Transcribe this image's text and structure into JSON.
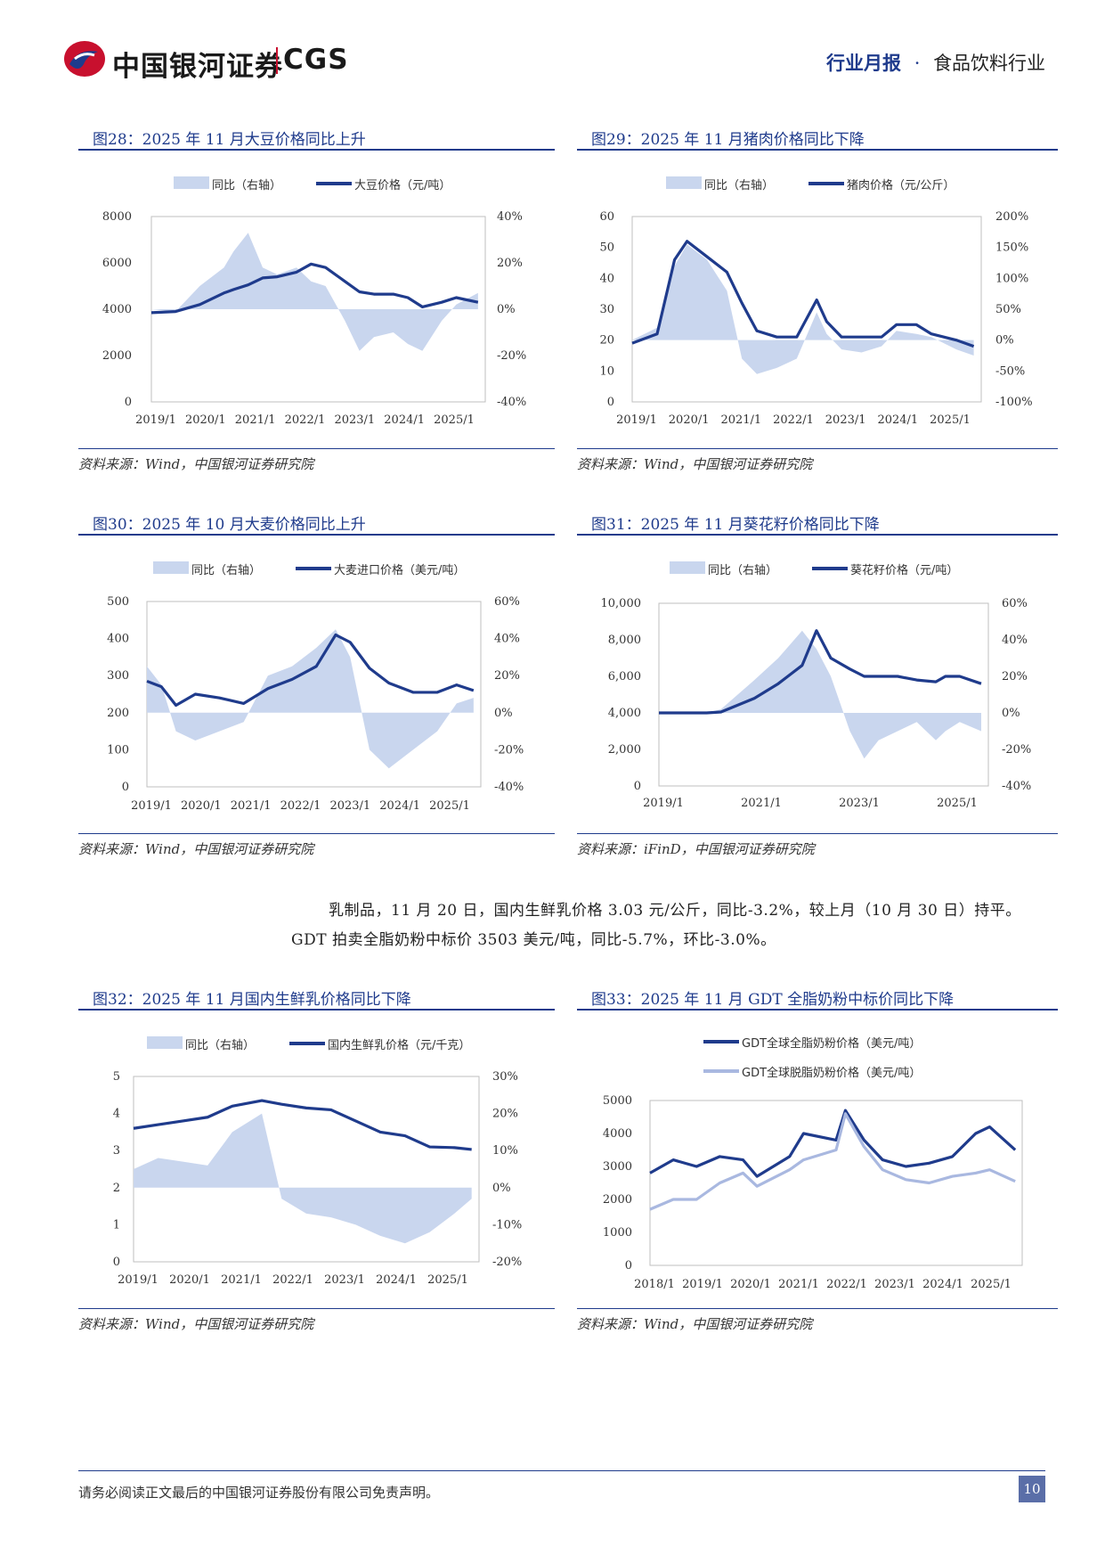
{
  "header": {
    "brand": "中国银河证券",
    "brand_en": "CGS",
    "report_type": "行业月报",
    "dot": "·",
    "industry": "食品饮料行业"
  },
  "colors": {
    "accent": "#1f3b8c",
    "area": "#c9d6ee",
    "logo_red": "#c8102e",
    "light_line": "#a9b8e0"
  },
  "figures": [
    {
      "title": "图28：2025 年 11 月大豆价格同比上升",
      "source": "资料来源：Wind，中国银河证券研究院",
      "legend": [
        "同比（右轴）",
        "大豆价格（元/吨）"
      ],
      "chart_data": {
        "type": "line",
        "series_types": [
          "area",
          "line"
        ],
        "x_ticks": [
          "2019/1",
          "2020/1",
          "2021/1",
          "2022/1",
          "2023/1",
          "2024/1",
          "2025/1"
        ],
        "y_left_ticks": [
          "8000",
          "6000",
          "4000",
          "2000",
          "0"
        ],
        "ylim_left": [
          0,
          8000
        ],
        "y_right_ticks": [
          "40%",
          "20%",
          "0%",
          "-20%",
          "-40%"
        ],
        "ylim_right": [
          -40,
          40
        ],
        "x": [
          2019.0,
          2019.5,
          2020.0,
          2020.5,
          2020.7,
          2021.0,
          2021.3,
          2021.6,
          2022.0,
          2022.3,
          2022.6,
          2023.0,
          2023.3,
          2023.6,
          2024.0,
          2024.3,
          2024.6,
          2025.0,
          2025.3,
          2025.75
        ],
        "line": [
          3850,
          3900,
          4200,
          4700,
          4850,
          5050,
          5350,
          5400,
          5600,
          5950,
          5800,
          5200,
          4750,
          4650,
          4650,
          4500,
          4100,
          4300,
          4500,
          4300
        ],
        "yoy": [
          0,
          -1,
          10,
          18,
          25,
          33,
          18,
          15,
          18,
          12,
          10,
          -5,
          -18,
          -12,
          -10,
          -15,
          -18,
          -5,
          2,
          7
        ]
      }
    },
    {
      "title": "图29：2025 年 11 月猪肉价格同比下降",
      "source": "资料来源：Wind，中国银河证券研究院",
      "legend": [
        "同比（右轴）",
        "猪肉价格（元/公斤）"
      ],
      "chart_data": {
        "type": "line",
        "series_types": [
          "area",
          "line"
        ],
        "x_ticks": [
          "2019/1",
          "2020/1",
          "2021/1",
          "2022/1",
          "2023/1",
          "2024/1",
          "2025/1"
        ],
        "y_left_ticks": [
          "60",
          "50",
          "40",
          "30",
          "20",
          "10",
          "0"
        ],
        "ylim_left": [
          0,
          60
        ],
        "y_right_ticks": [
          "200%",
          "150%",
          "100%",
          "50%",
          "0%",
          "-50%",
          "-100%"
        ],
        "ylim_right": [
          -100,
          200
        ],
        "x": [
          2019.0,
          2019.5,
          2019.85,
          2020.1,
          2020.5,
          2020.9,
          2021.2,
          2021.5,
          2021.9,
          2022.3,
          2022.7,
          2022.9,
          2023.2,
          2023.6,
          2024.0,
          2024.3,
          2024.7,
          2025.0,
          2025.5,
          2025.85
        ],
        "line": [
          19,
          22,
          46,
          52,
          47,
          42,
          32,
          23,
          21,
          21,
          33,
          26,
          21,
          21,
          21,
          25,
          25,
          22,
          20,
          18
        ],
        "yoy": [
          0,
          20,
          120,
          155,
          130,
          80,
          -30,
          -55,
          -45,
          -30,
          45,
          10,
          -15,
          -20,
          -10,
          15,
          10,
          5,
          -15,
          -25
        ]
      }
    },
    {
      "title": "图30：2025 年 10 月大麦价格同比上升",
      "source": "资料来源：Wind，中国银河证券研究院",
      "legend": [
        "同比（右轴）",
        "大麦进口价格（美元/吨）"
      ],
      "chart_data": {
        "type": "line",
        "series_types": [
          "area",
          "line"
        ],
        "x_ticks": [
          "2019/1",
          "2020/1",
          "2021/1",
          "2022/1",
          "2023/1",
          "2024/1",
          "2025/1"
        ],
        "y_left_ticks": [
          "500",
          "400",
          "300",
          "200",
          "100",
          "0"
        ],
        "ylim_left": [
          0,
          500
        ],
        "y_right_ticks": [
          "60%",
          "40%",
          "20%",
          "0%",
          "-20%",
          "-40%"
        ],
        "ylim_right": [
          -40,
          60
        ],
        "x": [
          2019.0,
          2019.3,
          2019.6,
          2020.0,
          2020.5,
          2021.0,
          2021.5,
          2022.0,
          2022.5,
          2022.9,
          2023.2,
          2023.6,
          2024.0,
          2024.5,
          2025.0,
          2025.4,
          2025.75
        ],
        "line": [
          285,
          270,
          220,
          250,
          240,
          225,
          265,
          290,
          325,
          410,
          390,
          320,
          280,
          255,
          255,
          275,
          260
        ],
        "yoy": [
          25,
          15,
          -10,
          -15,
          -10,
          -5,
          20,
          25,
          35,
          45,
          30,
          -20,
          -30,
          -20,
          -10,
          5,
          8
        ]
      }
    },
    {
      "title": "图31：2025 年 11 月葵花籽价格同比下降",
      "source": "资料来源：iFinD，中国银河证券研究院",
      "legend": [
        "同比（右轴）",
        "葵花籽价格（元/吨）"
      ],
      "chart_data": {
        "type": "line",
        "series_types": [
          "area",
          "line"
        ],
        "x_ticks": [
          "2019/1",
          "2021/1",
          "2023/1",
          "2025/1"
        ],
        "y_left_ticks": [
          "10,000",
          "8,000",
          "6,000",
          "4,000",
          "2,000",
          "0"
        ],
        "ylim_left": [
          0,
          10000
        ],
        "y_right_ticks": [
          "60%",
          "40%",
          "20%",
          "0%",
          "-20%",
          "-40%"
        ],
        "ylim_right": [
          -40,
          60
        ],
        "x": [
          2019.0,
          2020.0,
          2020.3,
          2021.0,
          2021.5,
          2022.0,
          2022.3,
          2022.6,
          2023.0,
          2023.3,
          2023.6,
          2024.0,
          2024.4,
          2024.8,
          2025.0,
          2025.3,
          2025.75
        ],
        "line": [
          4000,
          4000,
          4050,
          4800,
          5600,
          6600,
          8500,
          7000,
          6400,
          6000,
          6000,
          6000,
          5800,
          5700,
          6000,
          6000,
          5600
        ],
        "yoy": [
          0,
          0,
          2,
          18,
          30,
          45,
          35,
          20,
          -10,
          -25,
          -15,
          -10,
          -5,
          -15,
          -10,
          -5,
          -10
        ]
      }
    },
    {
      "title": "图32：2025 年 11 月国内生鲜乳价格同比下降",
      "source": "资料来源：Wind，中国银河证券研究院",
      "legend": [
        "同比（右轴）",
        "国内生鲜乳价格（元/千克）"
      ],
      "chart_data": {
        "type": "line",
        "series_types": [
          "area",
          "line"
        ],
        "x_ticks": [
          "2019/1",
          "2020/1",
          "2021/1",
          "2022/1",
          "2023/1",
          "2024/1",
          "2025/1"
        ],
        "y_left_ticks": [
          "5",
          "4",
          "3",
          "2",
          "1",
          "0"
        ],
        "ylim_left": [
          0,
          5
        ],
        "y_right_ticks": [
          "30%",
          "20%",
          "10%",
          "0%",
          "-10%",
          "-20%"
        ],
        "ylim_right": [
          -20,
          30
        ],
        "x": [
          2019.0,
          2019.5,
          2020.0,
          2020.5,
          2021.0,
          2021.6,
          2022.0,
          2022.5,
          2023.0,
          2023.5,
          2024.0,
          2024.5,
          2025.0,
          2025.5,
          2025.85
        ],
        "line": [
          3.6,
          3.7,
          3.8,
          3.9,
          4.2,
          4.35,
          4.25,
          4.15,
          4.1,
          3.8,
          3.5,
          3.4,
          3.1,
          3.08,
          3.03
        ],
        "yoy": [
          5,
          8,
          7,
          6,
          15,
          20,
          -3,
          -7,
          -8,
          -10,
          -13,
          -15,
          -12,
          -7,
          -3
        ]
      }
    },
    {
      "title": "图33：2025 年 11 月 GDT 全脂奶粉中标价同比下降",
      "source": "资料来源：Wind，中国银河证券研究院",
      "legend": [
        "GDT全球全脂奶粉价格（美元/吨）",
        "GDT全球脱脂奶粉价格（美元/吨）"
      ],
      "chart_data": {
        "type": "line",
        "series_types": [
          "line",
          "line"
        ],
        "x_ticks": [
          "2018/1",
          "2019/1",
          "2020/1",
          "2021/1",
          "2022/1",
          "2023/1",
          "2024/1",
          "2025/1"
        ],
        "y_left_ticks": [
          "5000",
          "4000",
          "3000",
          "2000",
          "1000",
          "0"
        ],
        "ylim_left": [
          0,
          5000
        ],
        "x": [
          2018.0,
          2018.5,
          2019.0,
          2019.5,
          2020.0,
          2020.3,
          2021.0,
          2021.3,
          2022.0,
          2022.2,
          2022.6,
          2023.0,
          2023.5,
          2024.0,
          2024.5,
          2025.0,
          2025.3,
          2025.85
        ],
        "series": [
          {
            "name": "GDT全球全脂奶粉价格（美元/吨）",
            "values": [
              2800,
              3200,
              3000,
              3300,
              3200,
              2700,
              3300,
              4000,
              3800,
              4700,
              3800,
              3200,
              3000,
              3100,
              3300,
              4000,
              4200,
              3503
            ]
          },
          {
            "name": "GDT全球脱脂奶粉价格（美元/吨）",
            "values": [
              1700,
              2000,
              2000,
              2500,
              2800,
              2400,
              2900,
              3200,
              3500,
              4600,
              3600,
              2900,
              2600,
              2500,
              2700,
              2800,
              2900,
              2550
            ]
          }
        ]
      }
    }
  ],
  "paragraph": {
    "line1": "乳制品，11 月 20 日，国内生鲜乳价格 3.03 元/公斤，同比-3.2%，较上月（10 月 30 日）持平。",
    "line2": "GDT 拍卖全脂奶粉中标价 3503 美元/吨，同比-5.7%，环比-3.0%。"
  },
  "footer": {
    "disclaimer": "请务必阅读正文最后的中国银河证券股份有限公司免责声明。",
    "page": "10"
  }
}
